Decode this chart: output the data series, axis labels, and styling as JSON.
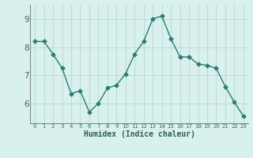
{
  "x": [
    0,
    1,
    2,
    3,
    4,
    5,
    6,
    7,
    8,
    9,
    10,
    11,
    12,
    13,
    14,
    15,
    16,
    17,
    18,
    19,
    20,
    21,
    22,
    23
  ],
  "y": [
    8.2,
    8.2,
    7.75,
    7.25,
    6.35,
    6.45,
    5.7,
    6.0,
    6.55,
    6.65,
    7.05,
    7.75,
    8.2,
    9.0,
    9.1,
    8.3,
    7.65,
    7.65,
    7.4,
    7.35,
    7.25,
    6.6,
    6.05,
    5.55
  ],
  "line_color": "#2e7d6e",
  "marker": "D",
  "marker_size": 2.5,
  "xlabel": "Humidex (Indice chaleur)",
  "ylim": [
    5.3,
    9.5
  ],
  "xlim": [
    -0.5,
    23.5
  ],
  "yticks": [
    6,
    7,
    8,
    9
  ],
  "bg_color": "#d8f0ee",
  "grid_color": "#b8d8d4",
  "title": ""
}
